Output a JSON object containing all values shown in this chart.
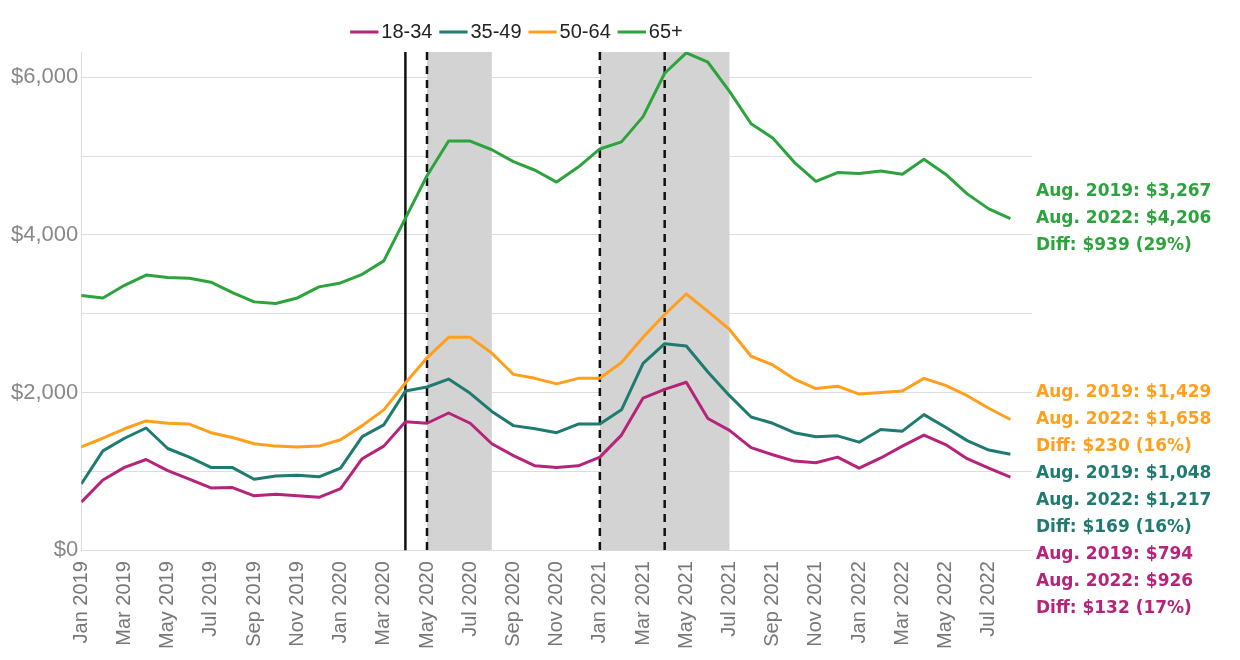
{
  "chart_data": {
    "type": "line",
    "x": [
      "2019-01",
      "2019-02",
      "2019-03",
      "2019-04",
      "2019-05",
      "2019-06",
      "2019-07",
      "2019-08",
      "2019-09",
      "2019-10",
      "2019-11",
      "2019-12",
      "2020-01",
      "2020-02",
      "2020-03",
      "2020-04",
      "2020-05",
      "2020-06",
      "2020-07",
      "2020-08",
      "2020-09",
      "2020-10",
      "2020-11",
      "2020-12",
      "2021-01",
      "2021-02",
      "2021-03",
      "2021-04",
      "2021-05",
      "2021-06",
      "2021-07",
      "2021-08",
      "2021-09",
      "2021-10",
      "2021-11",
      "2021-12",
      "2022-01",
      "2022-02",
      "2022-03",
      "2022-04",
      "2022-05",
      "2022-06",
      "2022-07",
      "2022-08"
    ],
    "series": [
      {
        "name": "18-34",
        "color": "#b5247a",
        "values": [
          610,
          890,
          1050,
          1150,
          1010,
          900,
          790,
          794,
          690,
          710,
          690,
          670,
          780,
          1160,
          1320,
          1630,
          1610,
          1740,
          1610,
          1350,
          1200,
          1070,
          1050,
          1070,
          1180,
          1460,
          1930,
          2040,
          2130,
          1670,
          1520,
          1300,
          1210,
          1130,
          1110,
          1180,
          1040,
          1170,
          1320,
          1460,
          1340,
          1160,
          1040,
          926
        ]
      },
      {
        "name": "35-49",
        "color": "#1f7a70",
        "values": [
          840,
          1260,
          1420,
          1550,
          1290,
          1180,
          1050,
          1048,
          900,
          940,
          950,
          930,
          1040,
          1440,
          1590,
          2020,
          2070,
          2170,
          1990,
          1760,
          1580,
          1540,
          1490,
          1600,
          1600,
          1780,
          2370,
          2620,
          2590,
          2260,
          1960,
          1690,
          1610,
          1490,
          1440,
          1450,
          1370,
          1530,
          1510,
          1720,
          1560,
          1390,
          1270,
          1217
        ]
      },
      {
        "name": "50-64",
        "color": "#ff9f1c",
        "values": [
          1310,
          1420,
          1540,
          1640,
          1610,
          1600,
          1490,
          1429,
          1350,
          1320,
          1310,
          1320,
          1400,
          1580,
          1780,
          2120,
          2440,
          2700,
          2700,
          2500,
          2230,
          2180,
          2110,
          2180,
          2180,
          2380,
          2700,
          2990,
          3250,
          3030,
          2800,
          2460,
          2350,
          2170,
          2050,
          2080,
          1980,
          2000,
          2020,
          2180,
          2090,
          1960,
          1800,
          1658
        ]
      },
      {
        "name": "65+",
        "color": "#2ca33c",
        "values": [
          3230,
          3200,
          3360,
          3490,
          3460,
          3450,
          3400,
          3267,
          3150,
          3130,
          3200,
          3340,
          3390,
          3500,
          3670,
          4210,
          4750,
          5190,
          5190,
          5080,
          4930,
          4820,
          4670,
          4860,
          5090,
          5180,
          5500,
          6050,
          6310,
          6190,
          5820,
          5410,
          5230,
          4920,
          4680,
          4790,
          4780,
          4810,
          4770,
          4960,
          4770,
          4520,
          4330,
          4206
        ]
      }
    ],
    "xlim": [
      "2019-01",
      "2022-09"
    ],
    "xticks": [
      {
        "value": "2019-01",
        "label": "Jan 2019"
      },
      {
        "value": "2019-03",
        "label": "Mar 2019"
      },
      {
        "value": "2019-05",
        "label": "May 2019"
      },
      {
        "value": "2019-07",
        "label": "Jul 2019"
      },
      {
        "value": "2019-09",
        "label": "Sep 2019"
      },
      {
        "value": "2019-11",
        "label": "Nov 2019"
      },
      {
        "value": "2020-01",
        "label": "Jan 2020"
      },
      {
        "value": "2020-03",
        "label": "Mar 2020"
      },
      {
        "value": "2020-05",
        "label": "May 2020"
      },
      {
        "value": "2020-07",
        "label": "Jul 2020"
      },
      {
        "value": "2020-09",
        "label": "Sep 2020"
      },
      {
        "value": "2020-11",
        "label": "Nov 2020"
      },
      {
        "value": "2021-01",
        "label": "Jan 2021"
      },
      {
        "value": "2021-03",
        "label": "Mar 2021"
      },
      {
        "value": "2021-05",
        "label": "May 2021"
      },
      {
        "value": "2021-07",
        "label": "Jul 2021"
      },
      {
        "value": "2021-09",
        "label": "Sep 2021"
      },
      {
        "value": "2021-11",
        "label": "Nov 2021"
      },
      {
        "value": "2022-01",
        "label": "Jan 2022"
      },
      {
        "value": "2022-03",
        "label": "Mar 2022"
      },
      {
        "value": "2022-05",
        "label": "May 2022"
      },
      {
        "value": "2022-07",
        "label": "Jul 2022"
      }
    ],
    "ylim": [
      0,
      6320
    ],
    "yticks": [
      {
        "value": 0,
        "label": "$0"
      },
      {
        "value": 1000,
        "label": null
      },
      {
        "value": 2000,
        "label": "$2,000"
      },
      {
        "value": 3000,
        "label": null
      },
      {
        "value": 4000,
        "label": "$4,000"
      },
      {
        "value": 5000,
        "label": null
      },
      {
        "value": 6000,
        "label": "$6,000"
      }
    ],
    "grid": "y",
    "legend": "top",
    "marker": "none",
    "line_style": "solid",
    "ref_lines": [
      {
        "axis": "x",
        "value": "2020-04",
        "color": "#111111",
        "line_style": "solid"
      },
      {
        "axis": "x",
        "value": "2020-05",
        "color": "#111111",
        "line_style": "dashed"
      },
      {
        "axis": "x",
        "value": "2021-01",
        "color": "#111111",
        "line_style": "dashed"
      },
      {
        "axis": "x",
        "value": "2021-04",
        "color": "#111111",
        "line_style": "dashed"
      }
    ],
    "bands": [
      {
        "axis": "x",
        "from": "2020-05",
        "to": "2020-08",
        "color": "#d3d3d3"
      },
      {
        "axis": "x",
        "from": "2021-01",
        "to": "2021-07",
        "color": "#d3d3d3"
      }
    ],
    "annotations": [
      "Aug. 2019: $3,267",
      "Aug. 2022: $4,206",
      "Diff: $939 (29%)",
      "Aug. 2019: $1,429",
      "Aug. 2022: $1,658",
      "Diff: $230 (16%)",
      "Aug. 2019: $1,048",
      "Aug. 2022: $1,217",
      "Diff: $169 (16%)",
      "Aug. 2019: $794",
      "Aug. 2022: $926",
      "Diff: $132 (17%)"
    ]
  }
}
